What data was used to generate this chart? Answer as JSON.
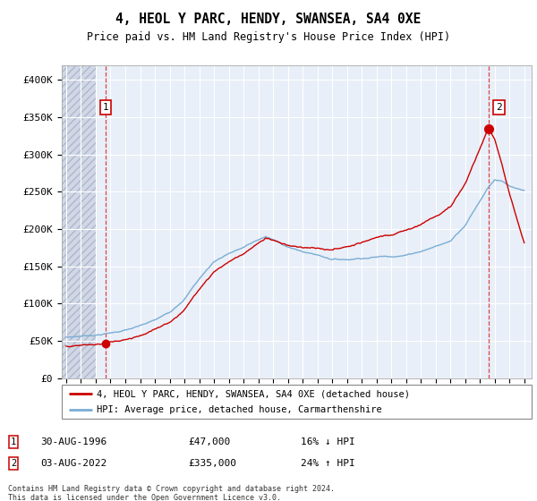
{
  "title": "4, HEOL Y PARC, HENDY, SWANSEA, SA4 0XE",
  "subtitle": "Price paid vs. HM Land Registry's House Price Index (HPI)",
  "legend_line1": "4, HEOL Y PARC, HENDY, SWANSEA, SA4 0XE (detached house)",
  "legend_line2": "HPI: Average price, detached house, Carmarthenshire",
  "annotation1_date": "30-AUG-1996",
  "annotation1_price": "£47,000",
  "annotation1_hpi": "16% ↓ HPI",
  "annotation2_date": "03-AUG-2022",
  "annotation2_price": "£335,000",
  "annotation2_hpi": "24% ↑ HPI",
  "footer": "Contains HM Land Registry data © Crown copyright and database right 2024.\nThis data is licensed under the Open Government Licence v3.0.",
  "sale1_year": 1996.66,
  "sale1_value": 47000,
  "sale2_year": 2022.58,
  "sale2_value": 335000,
  "hpi_color": "#7aadd4",
  "price_color": "#cc0000",
  "dashed_line_color": "#dd4444",
  "background_plot": "#e8eff8",
  "background_hatch": "#d0d8e8",
  "ylim_max": 420000,
  "xlim_start": 1993.7,
  "xlim_end": 2025.5,
  "ytick_interval": 50000
}
